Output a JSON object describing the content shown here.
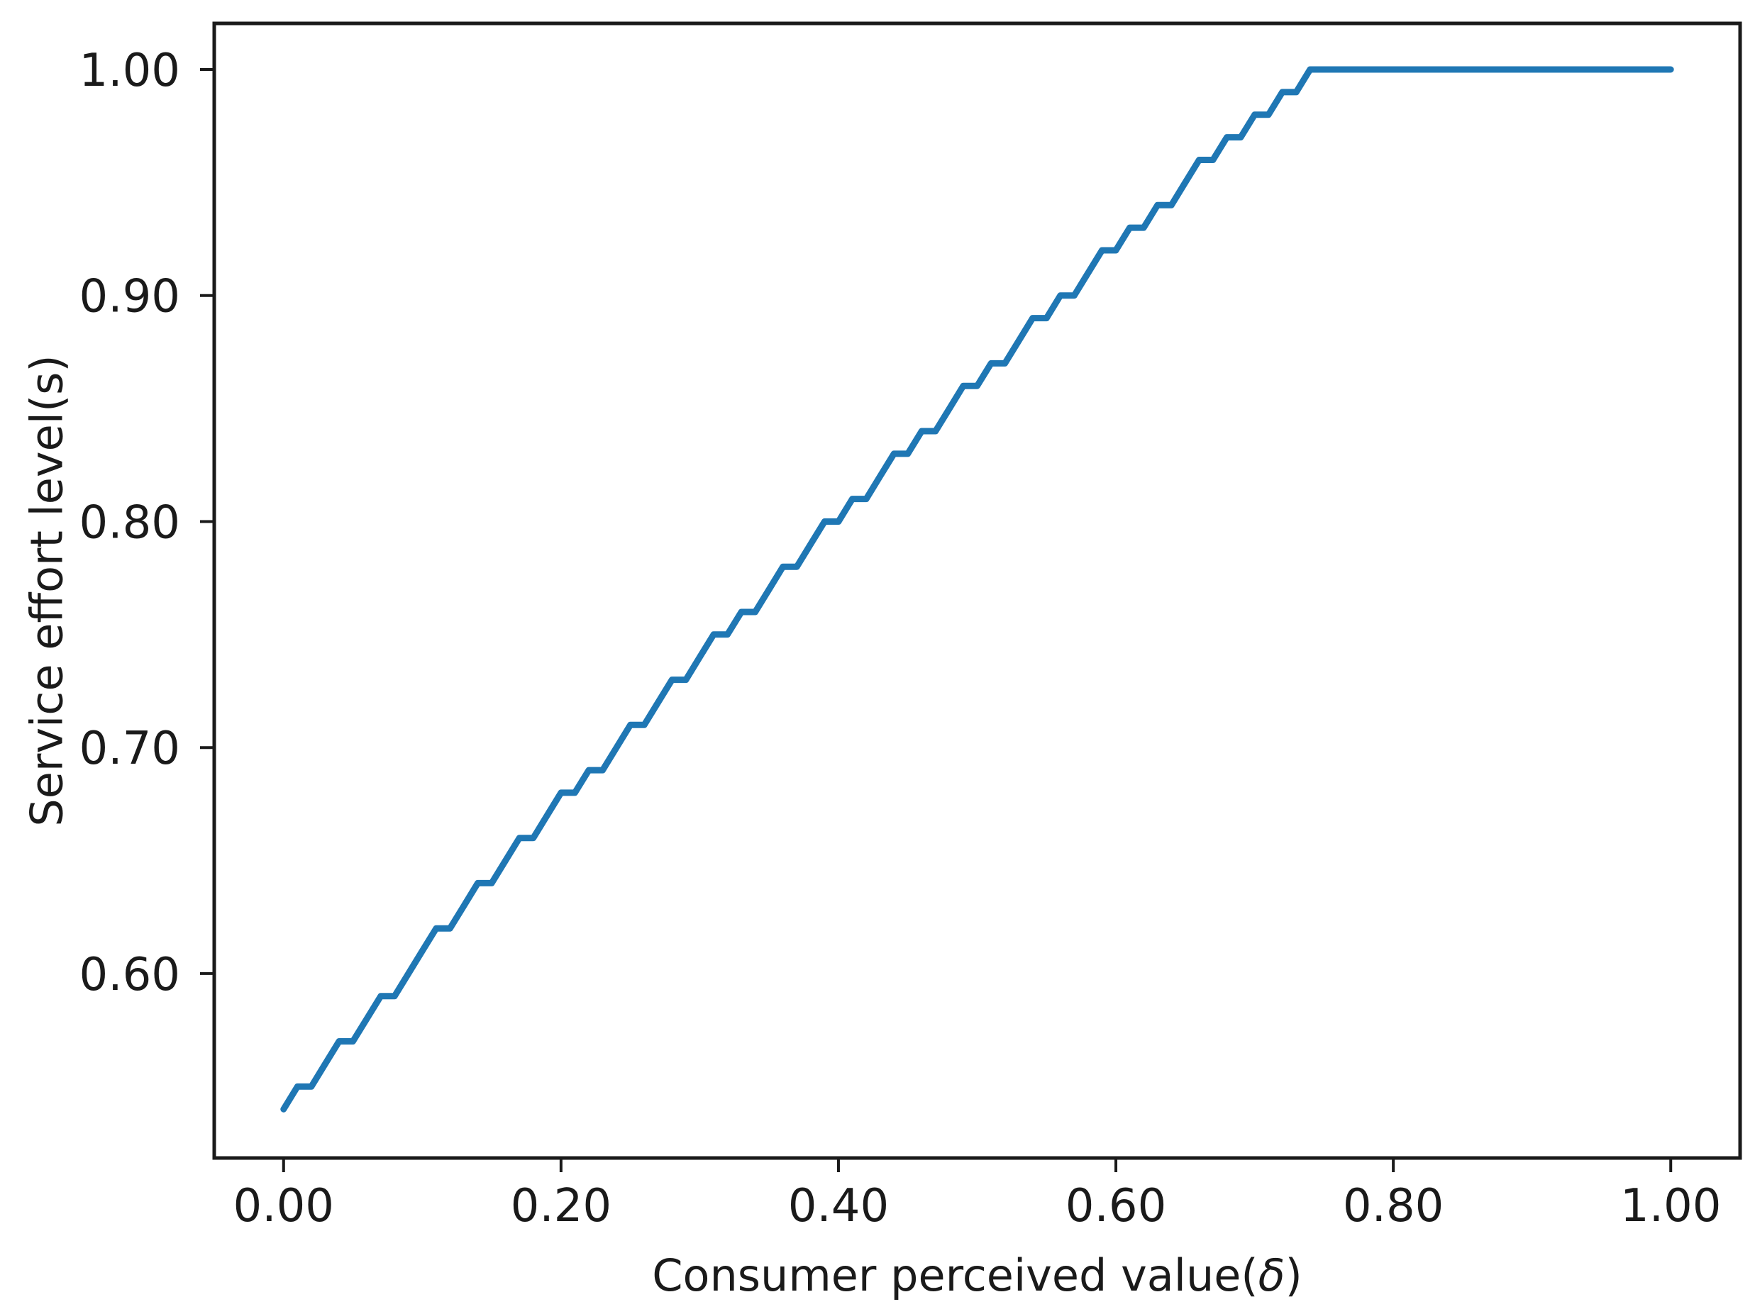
{
  "figure": {
    "background": "#ffffff",
    "xlabel_prefix": "Consumer perceived value(",
    "xlabel_symbol": "δ",
    "xlabel_suffix": ")",
    "ylabel": "Service effort level(s)"
  },
  "chart_data": {
    "type": "line",
    "title": "",
    "xlabel": "Consumer perceived value(δ)",
    "ylabel": "Service effort level(s)",
    "xlim": [
      -0.05,
      1.05
    ],
    "ylim": [
      0.5184,
      1.0204
    ],
    "grid": false,
    "legend_position": "none",
    "line_color": "#1f77b4",
    "line_width": 9,
    "axis_color": "#1a1a1a",
    "x_ticks": [
      0.0,
      0.2,
      0.4,
      0.6,
      0.8,
      1.0
    ],
    "x_tick_labels": [
      "0.00",
      "0.20",
      "0.40",
      "0.60",
      "0.80",
      "1.00"
    ],
    "y_ticks": [
      0.6,
      0.7,
      0.8,
      0.9,
      1.0
    ],
    "y_tick_labels": [
      "0.60",
      "0.70",
      "0.80",
      "0.90",
      "1.00"
    ],
    "series": [
      {
        "name": "service effort level",
        "x": [
          0.0,
          0.01,
          0.02,
          0.03,
          0.04,
          0.05,
          0.06,
          0.07,
          0.08,
          0.09,
          0.1,
          0.11,
          0.12,
          0.13,
          0.14,
          0.15,
          0.16,
          0.17,
          0.18,
          0.19,
          0.2,
          0.21,
          0.22,
          0.23,
          0.24,
          0.25,
          0.26,
          0.27,
          0.28,
          0.29,
          0.3,
          0.31,
          0.32,
          0.33,
          0.34,
          0.35,
          0.36,
          0.37,
          0.38,
          0.39,
          0.4,
          0.41,
          0.42,
          0.43,
          0.44,
          0.45,
          0.46,
          0.47,
          0.48,
          0.49,
          0.5,
          0.51,
          0.52,
          0.53,
          0.54,
          0.55,
          0.56,
          0.57,
          0.58,
          0.59,
          0.6,
          0.61,
          0.62,
          0.63,
          0.64,
          0.65,
          0.66,
          0.67,
          0.68,
          0.69,
          0.7,
          0.71,
          0.72,
          0.73,
          0.74,
          0.75,
          0.76,
          0.77,
          0.78,
          0.79,
          0.8,
          0.81,
          0.82,
          0.83,
          0.84,
          0.85,
          0.86,
          0.87,
          0.88,
          0.89,
          0.9,
          0.91,
          0.92,
          0.93,
          0.94,
          0.95,
          0.96,
          0.97,
          0.98,
          0.99,
          1.0
        ],
        "y": [
          0.54,
          0.55,
          0.55,
          0.56,
          0.57,
          0.57,
          0.58,
          0.59,
          0.59,
          0.6,
          0.61,
          0.62,
          0.62,
          0.63,
          0.64,
          0.64,
          0.65,
          0.66,
          0.66,
          0.67,
          0.68,
          0.68,
          0.69,
          0.69,
          0.7,
          0.71,
          0.71,
          0.72,
          0.73,
          0.73,
          0.74,
          0.75,
          0.75,
          0.76,
          0.76,
          0.77,
          0.78,
          0.78,
          0.79,
          0.8,
          0.8,
          0.81,
          0.81,
          0.82,
          0.83,
          0.83,
          0.84,
          0.84,
          0.85,
          0.86,
          0.86,
          0.87,
          0.87,
          0.88,
          0.89,
          0.89,
          0.9,
          0.9,
          0.91,
          0.92,
          0.92,
          0.93,
          0.93,
          0.94,
          0.94,
          0.95,
          0.96,
          0.96,
          0.97,
          0.97,
          0.98,
          0.98,
          0.99,
          0.99,
          1.0,
          1.0,
          1.0,
          1.0,
          1.0,
          1.0,
          1.0,
          1.0,
          1.0,
          1.0,
          1.0,
          1.0,
          1.0,
          1.0,
          1.0,
          1.0,
          1.0,
          1.0,
          1.0,
          1.0,
          1.0,
          1.0,
          1.0,
          1.0,
          1.0,
          1.0,
          1.0
        ]
      }
    ]
  }
}
